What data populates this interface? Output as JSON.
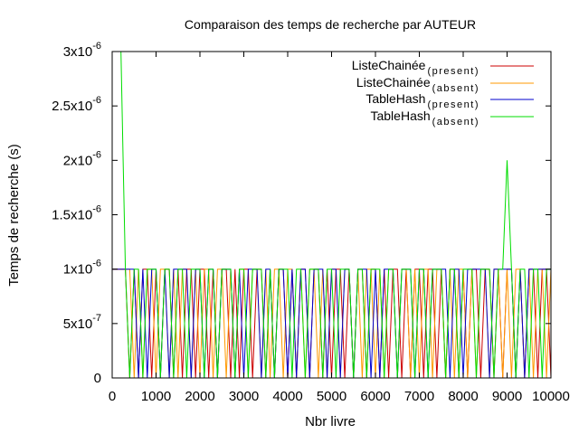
{
  "chart_data": {
    "type": "line",
    "title": "Comparaison des temps de recherche par AUTEUR",
    "xlabel": "Nbr livre",
    "ylabel": "Temps de recherche (s)",
    "xlim": [
      0,
      10000
    ],
    "ylim": [
      0,
      3e-06
    ],
    "x_ticks": [
      0,
      1000,
      2000,
      3000,
      4000,
      5000,
      6000,
      7000,
      8000,
      9000,
      10000
    ],
    "x_tick_labels": [
      "0",
      "1000",
      "2000",
      "3000",
      "4000",
      "5000",
      "6000",
      "7000",
      "8000",
      "9000",
      "10000"
    ],
    "y_ticks": [
      {
        "value": 0,
        "base": "0",
        "exp": ""
      },
      {
        "value": 5e-07,
        "base": "5x10",
        "exp": "-7"
      },
      {
        "value": 1e-06,
        "base": "1x10",
        "exp": "-6"
      },
      {
        "value": 1.5e-06,
        "base": "1.5x10",
        "exp": "-6"
      },
      {
        "value": 2e-06,
        "base": "2x10",
        "exp": "-6"
      },
      {
        "value": 2.5e-06,
        "base": "2.5x10",
        "exp": "-6"
      },
      {
        "value": 3e-06,
        "base": "3x10",
        "exp": "-6"
      }
    ],
    "grid": false,
    "legend_position": "top-right",
    "sampling_note_hidden": true,
    "series": [
      {
        "name": "ListeChainée",
        "qualifier": "(present)",
        "color": "#cc0000",
        "x": [
          0,
          300,
          400,
          500,
          600,
          700,
          800,
          900,
          1000,
          1100,
          1200,
          1300,
          1400,
          1500,
          1600,
          1700,
          1800,
          1900,
          2000,
          2100,
          2200,
          2300,
          2400,
          2500,
          2600,
          2700,
          2800,
          2900,
          3000,
          3100,
          3200,
          3300,
          3400,
          3500,
          3600,
          3700,
          3800,
          3900,
          4000,
          4100,
          4200,
          4300,
          4400,
          4500,
          4600,
          4700,
          4800,
          4900,
          5000,
          5100,
          5200,
          5300,
          5400,
          5500,
          5600,
          5700,
          5800,
          5900,
          6000,
          6100,
          6200,
          6300,
          6400,
          6500,
          6600,
          6700,
          6800,
          6900,
          7000,
          7100,
          7200,
          7300,
          7400,
          7500,
          7600,
          7700,
          7800,
          7900,
          8000,
          8100,
          8200,
          8300,
          8400,
          8500,
          8600,
          8700,
          8800,
          8900,
          9000,
          9100,
          9200,
          9300,
          9400,
          9500,
          9600,
          9700,
          9800,
          9900,
          10000
        ],
        "values": [
          1e-06,
          1e-06,
          0,
          1e-06,
          0,
          1e-06,
          1e-06,
          0,
          1e-06,
          0,
          1e-06,
          1e-06,
          0,
          1e-06,
          0,
          1e-06,
          1e-06,
          0,
          1e-06,
          1e-06,
          0,
          1e-06,
          0,
          1e-06,
          1e-06,
          0,
          1e-06,
          0,
          1e-06,
          1e-06,
          0,
          1e-06,
          1e-06,
          0,
          1e-06,
          0,
          1e-06,
          1e-06,
          0,
          1e-06,
          0,
          1e-06,
          1e-06,
          0,
          1e-06,
          1e-06,
          0,
          1e-06,
          0,
          1e-06,
          1e-06,
          0,
          1e-06,
          0,
          1e-06,
          1e-06,
          0,
          1e-06,
          1e-06,
          0,
          1e-06,
          0,
          1e-06,
          1e-06,
          0,
          1e-06,
          0,
          1e-06,
          1e-06,
          0,
          1e-06,
          1e-06,
          0,
          1e-06,
          0,
          1e-06,
          1e-06,
          0,
          1e-06,
          0,
          1e-06,
          1e-06,
          0,
          1e-06,
          1e-06,
          0,
          1e-06,
          0,
          1e-06,
          1e-06,
          0,
          1e-06,
          0,
          1e-06,
          1e-06,
          0,
          1e-06,
          1e-06,
          0
        ]
      },
      {
        "name": "ListeChainée",
        "qualifier": "(absent)",
        "color": "#ff9900",
        "x": [
          0,
          300,
          400,
          500,
          600,
          700,
          800,
          900,
          1000,
          1100,
          1200,
          1300,
          1400,
          1500,
          1600,
          1700,
          1800,
          1900,
          2000,
          2100,
          2200,
          2300,
          2400,
          2500,
          2600,
          2700,
          2800,
          2900,
          3000,
          3100,
          3200,
          3300,
          3400,
          3500,
          3600,
          3700,
          3800,
          3900,
          4000,
          4100,
          4200,
          4300,
          4400,
          4500,
          4600,
          4700,
          4800,
          4900,
          5000,
          5100,
          5200,
          5300,
          5400,
          5500,
          5600,
          5700,
          5800,
          5900,
          6000,
          6100,
          6200,
          6300,
          6400,
          6500,
          6600,
          6700,
          6800,
          6900,
          7000,
          7100,
          7200,
          7300,
          7400,
          7500,
          7600,
          7700,
          7800,
          7900,
          8000,
          8100,
          8200,
          8300,
          8400,
          8500,
          8600,
          8700,
          8800,
          8900,
          9000,
          9100,
          9200,
          9300,
          9400,
          9500,
          9600,
          9700,
          9800,
          9900,
          10000
        ],
        "values": [
          1e-06,
          1e-06,
          1e-06,
          0,
          1e-06,
          0,
          1e-06,
          1e-06,
          0,
          1e-06,
          1e-06,
          0,
          1e-06,
          0,
          1e-06,
          1e-06,
          0,
          1e-06,
          0,
          1e-06,
          1e-06,
          0,
          1e-06,
          1e-06,
          0,
          1e-06,
          0,
          1e-06,
          1e-06,
          0,
          1e-06,
          1e-06,
          0,
          1e-06,
          0,
          1e-06,
          1e-06,
          0,
          1e-06,
          1e-06,
          0,
          1e-06,
          0,
          1e-06,
          1e-06,
          0,
          1e-06,
          0,
          1e-06,
          1e-06,
          0,
          1e-06,
          1e-06,
          0,
          1e-06,
          0,
          1e-06,
          1e-06,
          0,
          1e-06,
          0,
          1e-06,
          1e-06,
          0,
          1e-06,
          1e-06,
          0,
          1e-06,
          0,
          1e-06,
          1e-06,
          0,
          1e-06,
          1e-06,
          0,
          1e-06,
          0,
          1e-06,
          1e-06,
          0,
          1e-06,
          0,
          1e-06,
          1e-06,
          0,
          1e-06,
          1e-06,
          0,
          1e-06,
          0,
          1e-06,
          1e-06,
          0,
          1e-06,
          0,
          1e-06,
          1e-06,
          0,
          1e-06
        ]
      },
      {
        "name": "TableHash",
        "qualifier": "(present)",
        "color": "#0000cc",
        "x": [
          0,
          300,
          400,
          500,
          600,
          700,
          800,
          900,
          1000,
          1100,
          1200,
          1300,
          1400,
          1500,
          1600,
          1700,
          1800,
          1900,
          2000,
          2100,
          2200,
          2300,
          2400,
          2500,
          2600,
          2700,
          2800,
          2900,
          3000,
          3100,
          3200,
          3300,
          3400,
          3500,
          3600,
          3700,
          3800,
          3900,
          4000,
          4100,
          4200,
          4300,
          4400,
          4500,
          4600,
          4700,
          4800,
          4900,
          5000,
          5100,
          5200,
          5300,
          5400,
          5500,
          5600,
          5700,
          5800,
          5900,
          6000,
          6100,
          6200,
          6300,
          6400,
          6500,
          6600,
          6700,
          6800,
          6900,
          7000,
          7100,
          7200,
          7300,
          7400,
          7500,
          7600,
          7700,
          7800,
          7900,
          8000,
          8100,
          8200,
          8300,
          8400,
          8500,
          8600,
          8700,
          8800,
          8900,
          9000,
          9100,
          9200,
          9300,
          9400,
          9500,
          9600,
          9700,
          9800,
          9900,
          10000
        ],
        "values": [
          1e-06,
          1e-06,
          1e-06,
          1e-06,
          0,
          1e-06,
          0,
          1e-06,
          1e-06,
          0,
          1e-06,
          0,
          1e-06,
          1e-06,
          1e-06,
          1e-06,
          0,
          1e-06,
          1e-06,
          0,
          1e-06,
          1e-06,
          0,
          1e-06,
          1e-06,
          1e-06,
          0,
          1e-06,
          0,
          1e-06,
          1e-06,
          1e-06,
          0,
          1e-06,
          1e-06,
          0,
          1e-06,
          1e-06,
          0,
          1e-06,
          0,
          1e-06,
          1e-06,
          0,
          1e-06,
          1e-06,
          1e-06,
          0,
          1e-06,
          1e-06,
          0,
          1e-06,
          1e-06,
          0,
          1e-06,
          1e-06,
          1e-06,
          0,
          1e-06,
          0,
          1e-06,
          1e-06,
          1e-06,
          0,
          1e-06,
          1e-06,
          1e-06,
          0,
          1e-06,
          1e-06,
          0,
          1e-06,
          1e-06,
          1e-06,
          1e-06,
          0,
          1e-06,
          1e-06,
          0,
          1e-06,
          1e-06,
          1e-06,
          1e-06,
          1e-06,
          0,
          1e-06,
          1e-06,
          1e-06,
          1e-06,
          1e-06,
          0,
          1e-06,
          0,
          1e-06,
          1e-06,
          1e-06,
          1e-06,
          1e-06,
          1e-06
        ]
      },
      {
        "name": "TableHash",
        "qualifier": "(absent)",
        "color": "#00dd00",
        "x": [
          0,
          200,
          250,
          300,
          400,
          500,
          600,
          700,
          800,
          900,
          1000,
          1100,
          1200,
          1300,
          1400,
          1500,
          1600,
          1700,
          1800,
          1900,
          2000,
          2100,
          2200,
          2300,
          2400,
          2500,
          2600,
          2700,
          2800,
          2900,
          3000,
          3100,
          3200,
          3300,
          3400,
          3500,
          3600,
          3700,
          3800,
          3900,
          4000,
          4100,
          4200,
          4300,
          4400,
          4500,
          4600,
          4700,
          4800,
          4900,
          5000,
          5100,
          5200,
          5300,
          5400,
          5500,
          5600,
          5700,
          5800,
          5900,
          6000,
          6100,
          6200,
          6300,
          6400,
          6500,
          6600,
          6700,
          6800,
          6900,
          7000,
          7100,
          7200,
          7300,
          7400,
          7500,
          7600,
          7700,
          7800,
          7900,
          8000,
          8100,
          8200,
          8300,
          8400,
          8500,
          8600,
          8700,
          8800,
          8900,
          9000,
          9100,
          9200,
          9300,
          9400,
          9500,
          9600,
          9700,
          9800,
          9900,
          10000
        ],
        "values": [
          3e-06,
          3e-06,
          2e-06,
          1e-06,
          0,
          1e-06,
          1e-06,
          0,
          1e-06,
          1e-06,
          1e-06,
          0,
          1e-06,
          1e-06,
          0,
          1e-06,
          1e-06,
          0,
          1e-06,
          1e-06,
          1e-06,
          0,
          1e-06,
          1e-06,
          0,
          1e-06,
          1e-06,
          1e-06,
          0,
          1e-06,
          1e-06,
          0,
          1e-06,
          1e-06,
          1e-06,
          0,
          1e-06,
          0,
          1e-06,
          1e-06,
          1e-06,
          0,
          1e-06,
          1e-06,
          0,
          1e-06,
          1e-06,
          1e-06,
          0,
          1e-06,
          1e-06,
          0,
          1e-06,
          1e-06,
          1e-06,
          0,
          1e-06,
          1e-06,
          0,
          1e-06,
          1e-06,
          1e-06,
          0,
          1e-06,
          1e-06,
          0,
          1e-06,
          1e-06,
          1e-06,
          0,
          1e-06,
          1e-06,
          0,
          1e-06,
          1e-06,
          1e-06,
          0,
          1e-06,
          1e-06,
          0,
          1e-06,
          1e-06,
          1e-06,
          0,
          1e-06,
          1e-06,
          1e-06,
          0,
          1e-06,
          1e-06,
          2e-06,
          1e-06,
          0,
          1e-06,
          1e-06,
          0,
          1e-06,
          1e-06,
          0,
          1e-06,
          1e-06
        ]
      }
    ]
  }
}
